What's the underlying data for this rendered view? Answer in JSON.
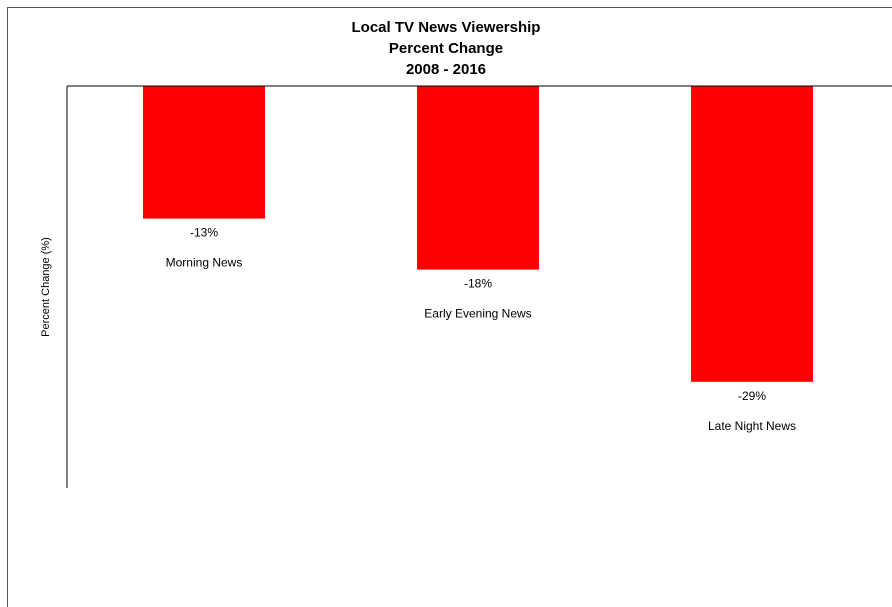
{
  "chart_data": {
    "type": "bar",
    "title": "Local TV News Viewership",
    "subtitle": "Percent Change",
    "period": "2008 - 2016",
    "xlabel": "",
    "ylabel": "Percent Change (%)",
    "categories": [
      "Morning News",
      "Early Evening News",
      "Late Night News"
    ],
    "values": [
      -13,
      -18,
      -29
    ],
    "data_labels": [
      "-13%",
      "-18%",
      "-29%"
    ],
    "ylim": [
      -39,
      0
    ],
    "bar_color": "#ff0000",
    "grid": false,
    "legend": "none"
  }
}
